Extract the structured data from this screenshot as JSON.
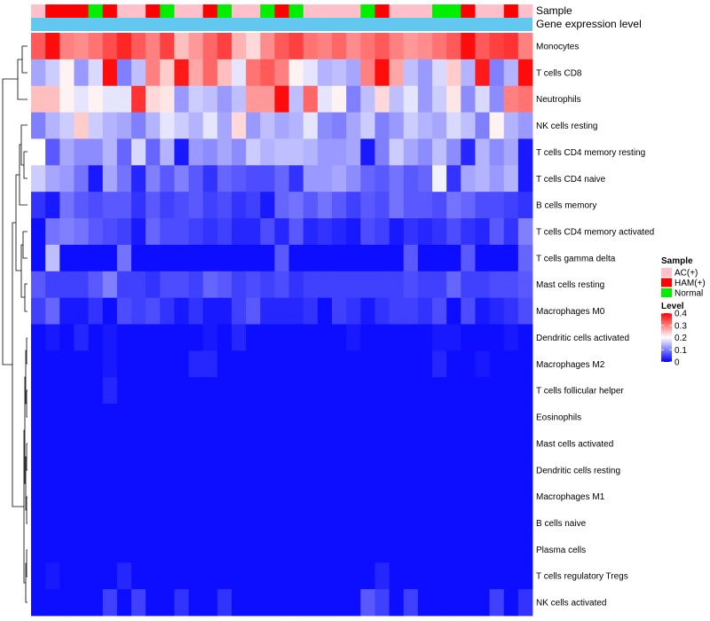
{
  "chart_data": {
    "type": "heatmap",
    "title": "",
    "column_annotations": [
      {
        "name": "Sample",
        "label": "Sample"
      },
      {
        "name": "Gene expression level",
        "label": "Gene expression level",
        "color": "#63c8f0"
      }
    ],
    "sample_groups": [
      "A",
      "H",
      "H",
      "H",
      "N",
      "H",
      "A",
      "A",
      "H",
      "N",
      "A",
      "A",
      "H",
      "N",
      "A",
      "A",
      "N",
      "H",
      "N",
      "A",
      "A",
      "A",
      "A",
      "N",
      "H",
      "A",
      "A",
      "A",
      "N",
      "N",
      "H",
      "A",
      "A",
      "H",
      "A"
    ],
    "legends": {
      "sample": {
        "title": "Sample",
        "entries": [
          {
            "key": "A",
            "label": "AC(+)",
            "color": "#ffc0cb"
          },
          {
            "key": "H",
            "label": "HAM(+)",
            "color": "#ff0000"
          },
          {
            "key": "N",
            "label": "Normal",
            "color": "#00ee00"
          }
        ]
      },
      "level": {
        "title": "Level",
        "min": 0,
        "max": 0.4,
        "ticks": [
          0,
          0.1,
          0.2,
          0.3,
          0.4
        ],
        "tick_labels": [
          "0",
          "0.1",
          "0.2",
          "0.3",
          "0.4"
        ],
        "colors": [
          "#0000ff",
          "#ffffff",
          "#ff0000"
        ]
      }
    },
    "rows": [
      {
        "label": "Monocytes",
        "values": [
          0.33,
          0.39,
          0.3,
          0.29,
          0.31,
          0.34,
          0.37,
          0.33,
          0.3,
          0.35,
          0.25,
          0.28,
          0.32,
          0.35,
          0.26,
          0.23,
          0.29,
          0.33,
          0.35,
          0.31,
          0.3,
          0.32,
          0.29,
          0.31,
          0.33,
          0.3,
          0.28,
          0.29,
          0.31,
          0.33,
          0.39,
          0.33,
          0.35,
          0.36,
          0.3
        ]
      },
      {
        "label": "T cells CD8",
        "values": [
          0.13,
          0.16,
          0.21,
          0.12,
          0.17,
          0.39,
          0.1,
          0.15,
          0.3,
          0.24,
          0.38,
          0.27,
          0.32,
          0.25,
          0.18,
          0.31,
          0.33,
          0.3,
          0.21,
          0.18,
          0.14,
          0.15,
          0.13,
          0.3,
          0.39,
          0.27,
          0.15,
          0.12,
          0.17,
          0.24,
          0.14,
          0.38,
          0.1,
          0.14,
          0.39
        ]
      },
      {
        "label": "Neutrophils",
        "values": [
          0.25,
          0.25,
          0.21,
          0.18,
          0.21,
          0.18,
          0.18,
          0.36,
          0.23,
          0.22,
          0.12,
          0.16,
          0.15,
          0.12,
          0.15,
          0.28,
          0.28,
          0.39,
          0.15,
          0.32,
          0.18,
          0.21,
          0.1,
          0.15,
          0.23,
          0.15,
          0.18,
          0.12,
          0.16,
          0.22,
          0.11,
          0.17,
          0.11,
          0.3,
          0.31
        ]
      },
      {
        "label": "NK cells resting",
        "values": [
          0.1,
          0.14,
          0.16,
          0.24,
          0.16,
          0.14,
          0.13,
          0.1,
          0.14,
          0.18,
          0.16,
          0.14,
          0.18,
          0.13,
          0.23,
          0.12,
          0.15,
          0.13,
          0.14,
          0.18,
          0.11,
          0.1,
          0.13,
          0.16,
          0.1,
          0.12,
          0.16,
          0.14,
          0.13,
          0.17,
          0.15,
          0.1,
          0.21,
          0.14,
          0.12
        ]
      },
      {
        "label": "T cells CD4 memory resting",
        "values": [
          0.2,
          0.07,
          0.13,
          0.11,
          0.11,
          0.14,
          0.08,
          0.17,
          0.08,
          0.14,
          0.02,
          0.12,
          0.11,
          0.13,
          0.11,
          0.16,
          0.14,
          0.15,
          0.15,
          0.14,
          0.12,
          0.12,
          0.13,
          0.02,
          0.1,
          0.16,
          0.13,
          0.11,
          0.15,
          0.11,
          0.03,
          0.14,
          0.11,
          0.13,
          0.02
        ]
      },
      {
        "label": "T cells CD4 naive",
        "values": [
          0.16,
          0.13,
          0.12,
          0.09,
          0.02,
          0.13,
          0.09,
          0.03,
          0.1,
          0.07,
          0.1,
          0.07,
          0.04,
          0.08,
          0.07,
          0.06,
          0.06,
          0.08,
          0.04,
          0.12,
          0.12,
          0.13,
          0.11,
          0.08,
          0.07,
          0.09,
          0.07,
          0.08,
          0.19,
          0.04,
          0.13,
          0.14,
          0.12,
          0.14,
          0.02
        ]
      },
      {
        "label": "B cells memory",
        "values": [
          0.04,
          0.02,
          0.09,
          0.07,
          0.06,
          0.07,
          0.07,
          0.04,
          0.07,
          0.05,
          0.06,
          0.07,
          0.05,
          0.06,
          0.04,
          0.05,
          0.02,
          0.08,
          0.09,
          0.07,
          0.09,
          0.07,
          0.05,
          0.07,
          0.06,
          0.09,
          0.07,
          0.07,
          0.06,
          0.09,
          0.08,
          0.06,
          0.06,
          0.05,
          0.04
        ]
      },
      {
        "label": "T cells CD4 memory activated",
        "values": [
          0.01,
          0.09,
          0.1,
          0.09,
          0.07,
          0.06,
          0.05,
          0.02,
          0.08,
          0.06,
          0.06,
          0.05,
          0.04,
          0.05,
          0.03,
          0.03,
          0.06,
          0.03,
          0.07,
          0.03,
          0.04,
          0.03,
          0.02,
          0.06,
          0.05,
          0.02,
          0.04,
          0.03,
          0.04,
          0.06,
          0.04,
          0.03,
          0.07,
          0.04,
          0.1
        ]
      },
      {
        "label": "T cells gamma delta",
        "values": [
          0.01,
          0.15,
          0.01,
          0.01,
          0.01,
          0.01,
          0.09,
          0.01,
          0.01,
          0.01,
          0.01,
          0.01,
          0.01,
          0.01,
          0.01,
          0.01,
          0.01,
          0.07,
          0.01,
          0.01,
          0.01,
          0.01,
          0.01,
          0.01,
          0.01,
          0.01,
          0.07,
          0.01,
          0.01,
          0.01,
          0.07,
          0.01,
          0.01,
          0.01,
          0.08
        ]
      },
      {
        "label": "Mast cells resting",
        "values": [
          0.07,
          0.05,
          0.05,
          0.05,
          0.07,
          0.1,
          0.05,
          0.05,
          0.04,
          0.06,
          0.06,
          0.05,
          0.08,
          0.07,
          0.05,
          0.06,
          0.05,
          0.06,
          0.04,
          0.05,
          0.05,
          0.05,
          0.05,
          0.05,
          0.05,
          0.05,
          0.06,
          0.05,
          0.05,
          0.08,
          0.05,
          0.05,
          0.06,
          0.06,
          0.07
        ]
      },
      {
        "label": "Macrophages M0",
        "values": [
          0.05,
          0.08,
          0.02,
          0.02,
          0.04,
          0.01,
          0.06,
          0.05,
          0.06,
          0.04,
          0.02,
          0.04,
          0.02,
          0.02,
          0.05,
          0.07,
          0.03,
          0.03,
          0.03,
          0.04,
          0.01,
          0.05,
          0.04,
          0.02,
          0.04,
          0.05,
          0.05,
          0.04,
          0.06,
          0.01,
          0.06,
          0.02,
          0.03,
          0.04,
          0.06
        ]
      },
      {
        "label": "Dendritic cells activated",
        "values": [
          0.01,
          0.02,
          0.01,
          0.03,
          0.01,
          0.02,
          0.01,
          0.01,
          0.01,
          0.01,
          0.01,
          0.01,
          0.02,
          0.01,
          0.03,
          0.01,
          0.01,
          0.01,
          0.01,
          0.01,
          0.01,
          0.01,
          0.02,
          0.01,
          0.01,
          0.01,
          0.01,
          0.01,
          0.02,
          0.02,
          0.01,
          0.01,
          0.01,
          0.02,
          0.01
        ]
      },
      {
        "label": "Macrophages M2",
        "values": [
          0.01,
          0.01,
          0.01,
          0.01,
          0.01,
          0.02,
          0.01,
          0.01,
          0.01,
          0.01,
          0.01,
          0.03,
          0.03,
          0.01,
          0.01,
          0.01,
          0.01,
          0.01,
          0.01,
          0.01,
          0.01,
          0.01,
          0.01,
          0.01,
          0.01,
          0.01,
          0.01,
          0.01,
          0.03,
          0.01,
          0.01,
          0.02,
          0.01,
          0.01,
          0.01
        ]
      },
      {
        "label": "T cells follicular helper",
        "values": [
          0.01,
          0.01,
          0.01,
          0.01,
          0.01,
          0.03,
          0.01,
          0.01,
          0.01,
          0.01,
          0.01,
          0.01,
          0.01,
          0.01,
          0.01,
          0.01,
          0.01,
          0.01,
          0.01,
          0.01,
          0.01,
          0.01,
          0.01,
          0.01,
          0.01,
          0.01,
          0.01,
          0.01,
          0.01,
          0.01,
          0.01,
          0.01,
          0.01,
          0.01,
          0.01
        ]
      },
      {
        "label": "Eosinophils",
        "values": [
          0.01,
          0.01,
          0.01,
          0.01,
          0.01,
          0.01,
          0.01,
          0.01,
          0.01,
          0.01,
          0.01,
          0.01,
          0.01,
          0.01,
          0.01,
          0.01,
          0.01,
          0.01,
          0.01,
          0.01,
          0.01,
          0.01,
          0.01,
          0.01,
          0.01,
          0.01,
          0.01,
          0.01,
          0.01,
          0.01,
          0.01,
          0.01,
          0.01,
          0.01,
          0.01
        ]
      },
      {
        "label": "Mast cells activated",
        "values": [
          0.01,
          0.01,
          0.01,
          0.01,
          0.01,
          0.01,
          0.01,
          0.01,
          0.01,
          0.01,
          0.01,
          0.01,
          0.01,
          0.01,
          0.01,
          0.01,
          0.01,
          0.01,
          0.01,
          0.01,
          0.01,
          0.01,
          0.01,
          0.01,
          0.01,
          0.01,
          0.01,
          0.01,
          0.01,
          0.01,
          0.01,
          0.01,
          0.01,
          0.01,
          0.01
        ]
      },
      {
        "label": "Dendritic cells resting",
        "values": [
          0.01,
          0.01,
          0.01,
          0.01,
          0.01,
          0.01,
          0.01,
          0.01,
          0.01,
          0.01,
          0.01,
          0.01,
          0.01,
          0.01,
          0.01,
          0.01,
          0.01,
          0.01,
          0.01,
          0.01,
          0.01,
          0.01,
          0.01,
          0.01,
          0.01,
          0.01,
          0.01,
          0.01,
          0.01,
          0.01,
          0.01,
          0.01,
          0.01,
          0.01,
          0.01
        ]
      },
      {
        "label": "Macrophages M1",
        "values": [
          0.01,
          0.01,
          0.01,
          0.01,
          0.01,
          0.01,
          0.01,
          0.01,
          0.01,
          0.01,
          0.01,
          0.01,
          0.01,
          0.01,
          0.01,
          0.01,
          0.01,
          0.01,
          0.01,
          0.01,
          0.01,
          0.01,
          0.01,
          0.01,
          0.01,
          0.01,
          0.01,
          0.01,
          0.01,
          0.01,
          0.01,
          0.01,
          0.01,
          0.01,
          0.01
        ]
      },
      {
        "label": "B cells naive",
        "values": [
          0.01,
          0.01,
          0.01,
          0.01,
          0.01,
          0.01,
          0.01,
          0.01,
          0.01,
          0.01,
          0.01,
          0.01,
          0.01,
          0.01,
          0.01,
          0.01,
          0.01,
          0.01,
          0.01,
          0.01,
          0.01,
          0.01,
          0.01,
          0.01,
          0.01,
          0.01,
          0.01,
          0.01,
          0.01,
          0.01,
          0.01,
          0.01,
          0.01,
          0.01,
          0.01
        ]
      },
      {
        "label": "Plasma cells",
        "values": [
          0.01,
          0.01,
          0.01,
          0.01,
          0.01,
          0.01,
          0.01,
          0.01,
          0.01,
          0.01,
          0.01,
          0.01,
          0.01,
          0.01,
          0.01,
          0.01,
          0.01,
          0.01,
          0.01,
          0.01,
          0.01,
          0.01,
          0.01,
          0.01,
          0.01,
          0.01,
          0.01,
          0.01,
          0.01,
          0.01,
          0.01,
          0.01,
          0.01,
          0.01,
          0.01
        ]
      },
      {
        "label": "T cells regulatory  Tregs",
        "values": [
          0.01,
          0.02,
          0.01,
          0.01,
          0.01,
          0.01,
          0.03,
          0.01,
          0.01,
          0.01,
          0.01,
          0.01,
          0.01,
          0.01,
          0.01,
          0.01,
          0.01,
          0.01,
          0.01,
          0.01,
          0.01,
          0.01,
          0.01,
          0.01,
          0.03,
          0.01,
          0.01,
          0.01,
          0.01,
          0.01,
          0.01,
          0.01,
          0.01,
          0.01,
          0.01
        ]
      },
      {
        "label": "NK cells activated",
        "values": [
          0.01,
          0.01,
          0.01,
          0.01,
          0.01,
          0.05,
          0.01,
          0.05,
          0.01,
          0.01,
          0.04,
          0.01,
          0.01,
          0.04,
          0.01,
          0.01,
          0.01,
          0.01,
          0.01,
          0.01,
          0.01,
          0.01,
          0.01,
          0.07,
          0.05,
          0.01,
          0.05,
          0.01,
          0.01,
          0.01,
          0.01,
          0.01,
          0.05,
          0.01,
          0.04
        ]
      }
    ]
  }
}
